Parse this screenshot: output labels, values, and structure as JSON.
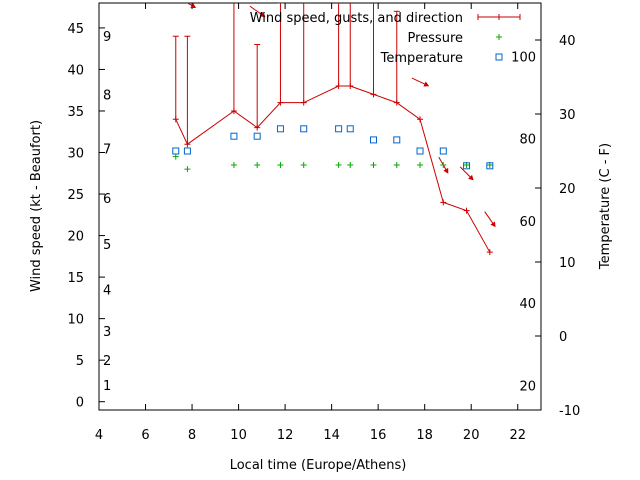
{
  "chart_data": {
    "type": "line",
    "xlabel": "Local time (Europe/Athens)",
    "ylabel": "Wind speed (kt - Beaufort)",
    "y2label": "Temperature (C - F)",
    "xlim": [
      4,
      23
    ],
    "ylim": [
      -1,
      48
    ],
    "y2lim": [
      -10,
      45
    ],
    "x_ticks": [
      "4",
      "6",
      "8",
      "10",
      "12",
      "14",
      "16",
      "18",
      "20",
      "22"
    ],
    "y_ticks": [
      "0",
      "5",
      "10",
      "15",
      "20",
      "25",
      "30",
      "35",
      "40",
      "45"
    ],
    "y2_ticks_celsius": [
      "-10",
      "0",
      "10",
      "20",
      "30",
      "40"
    ],
    "y2_ticks_fahrenheit": [
      "20",
      "40",
      "60",
      "80",
      "100"
    ],
    "beaufort_labels": [
      "1",
      "2",
      "3",
      "4",
      "5",
      "6",
      "7",
      "8",
      "9"
    ],
    "legend": {
      "placement": "top-right",
      "entries": [
        "Wind speed, gusts, and direction",
        "Pressure",
        "Temperature"
      ]
    },
    "colors": {
      "wind": "#cc0000",
      "pressure": "#00aa00",
      "temperature": "#0066cc",
      "axis": "#000000"
    },
    "series": [
      {
        "name": "Wind speed, gusts, and direction",
        "x": [
          7.3,
          7.8,
          9.8,
          10.8,
          11.8,
          12.8,
          14.3,
          14.8,
          15.8,
          16.8,
          17.8,
          18.8,
          19.8,
          20.8
        ],
        "values": [
          34,
          31,
          35,
          33,
          36,
          36,
          38,
          38,
          37,
          36,
          34,
          24,
          23,
          18
        ],
        "gusts": [
          44,
          44,
          49,
          43,
          48,
          49,
          52,
          51,
          50,
          47,
          34,
          24,
          23,
          18
        ]
      },
      {
        "name": "Pressure",
        "x": [
          7.3,
          7.8,
          9.8,
          10.8,
          11.8,
          12.8,
          14.3,
          14.8,
          15.8,
          16.8,
          17.8,
          18.8,
          19.8,
          20.8
        ],
        "values": [
          29.5,
          28,
          28.5,
          28.5,
          28.5,
          28.5,
          28.5,
          28.5,
          28.5,
          28.5,
          28.5,
          28.5,
          28.5,
          28.5
        ]
      },
      {
        "name": "Temperature",
        "x": [
          7.3,
          7.8,
          9.8,
          10.8,
          11.8,
          12.8,
          14.3,
          14.8,
          15.8,
          16.8,
          17.8,
          18.8,
          19.8,
          20.8
        ],
        "values": [
          25,
          25,
          27,
          27,
          28,
          28,
          28,
          28,
          26.5,
          26.5,
          25,
          25,
          23,
          23
        ]
      }
    ],
    "wind_direction_arrows": [
      {
        "x": 7.8,
        "y": 48,
        "angle": 30
      },
      {
        "x": 9.8,
        "y": 50,
        "angle": 30
      },
      {
        "x": 10.8,
        "y": 47,
        "angle": 35
      },
      {
        "x": 17.8,
        "y": 38.5,
        "angle": 25
      },
      {
        "x": 18.8,
        "y": 28.5,
        "angle": 60
      },
      {
        "x": 19.8,
        "y": 27.5,
        "angle": 45
      },
      {
        "x": 20.8,
        "y": 22,
        "angle": 55
      }
    ]
  }
}
